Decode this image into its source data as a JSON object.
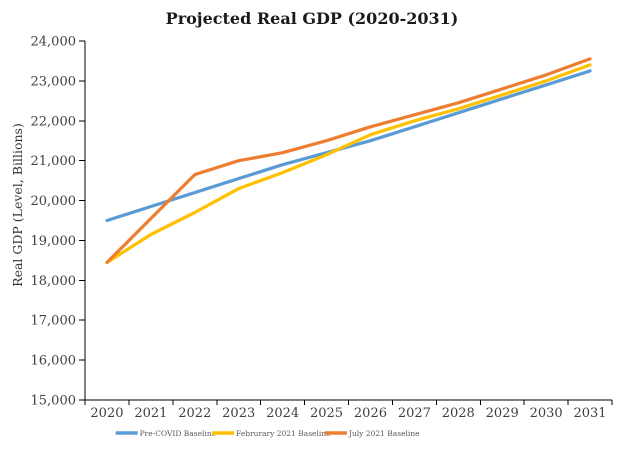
{
  "title": "Projected Real GDP (2020-2031)",
  "chart_data": {
    "type": "line",
    "title": "Projected Real GDP (2020-2031)",
    "xlabel": "",
    "ylabel": "Real GDP (Level, Billions)",
    "ylim": [
      15000,
      24000
    ],
    "ytick_step": 1000,
    "ytick_labels": [
      "15,000",
      "16,000",
      "17,000",
      "18,000",
      "19,000",
      "20,000",
      "21,000",
      "22,000",
      "23,000",
      "24,000"
    ],
    "grid": false,
    "legend_position": "bottom",
    "x": [
      2020,
      2021,
      2022,
      2023,
      2024,
      2025,
      2026,
      2027,
      2028,
      2029,
      2030,
      2031
    ],
    "series": [
      {
        "name": "Pre-COVID Baseline",
        "color": "#5B9BD5",
        "values": [
          19500,
          19850,
          20200,
          20550,
          20900,
          21200,
          21500,
          21850,
          22200,
          22550,
          22900,
          23250
        ]
      },
      {
        "name": "Februrary 2021 Baseline",
        "color": "#FFC000",
        "values": [
          18450,
          19150,
          19700,
          20300,
          20700,
          21150,
          21650,
          22000,
          22300,
          22650,
          23000,
          23400
        ]
      },
      {
        "name": "July 2021 Baseline",
        "color": "#ED7D31",
        "values": [
          18450,
          19550,
          20650,
          21000,
          21200,
          21500,
          21850,
          22150,
          22450,
          22800,
          23150,
          23550
        ]
      }
    ]
  }
}
